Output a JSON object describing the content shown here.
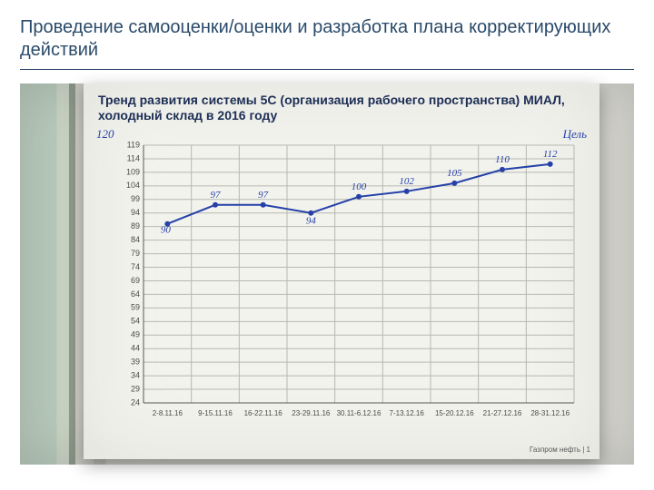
{
  "slide": {
    "title": "Проведение самооценки/оценки и разработка плана корректирующих действий",
    "title_color": "#2a4a6a",
    "underline_color": "#1f3b63"
  },
  "chart": {
    "type": "line",
    "title": "Тренд развития системы 5С (организация рабочего пространства) МИАЛ, холодный склад в 2016 году",
    "title_color": "#1c2e55",
    "title_fontsize": 14,
    "pen_target_left": "120",
    "pen_target_right": "Цель",
    "pen_color": "#2541a8",
    "background_color": "#f3f3ee",
    "grid_color": "#b8b8b0",
    "axis_color": "#555555",
    "line_color": "#2541a8",
    "marker_color": "#2541a8",
    "line_width": 2,
    "marker_size": 3,
    "ylim": [
      24,
      119
    ],
    "y_ticks": [
      24,
      29,
      34,
      39,
      44,
      49,
      54,
      59,
      64,
      69,
      74,
      79,
      84,
      89,
      94,
      99,
      104,
      109,
      114,
      119
    ],
    "x_categories": [
      "2-8.11.16",
      "9-15.11.16",
      "16-22.11.16",
      "23-29.11.16",
      "30.11-6.12.16",
      "7-13.12.16",
      "15-20.12.16",
      "21-27.12.16",
      "28-31.12.16"
    ],
    "values": [
      90,
      97,
      97,
      94,
      100,
      102,
      105,
      110,
      112
    ],
    "value_labels": [
      "90",
      "97",
      "97",
      "94",
      "100",
      "102",
      "105",
      "110",
      "112"
    ],
    "value_label_fontsize": 11,
    "tick_label_fontsize": 9,
    "footer": "Газпром нефть | 1"
  }
}
